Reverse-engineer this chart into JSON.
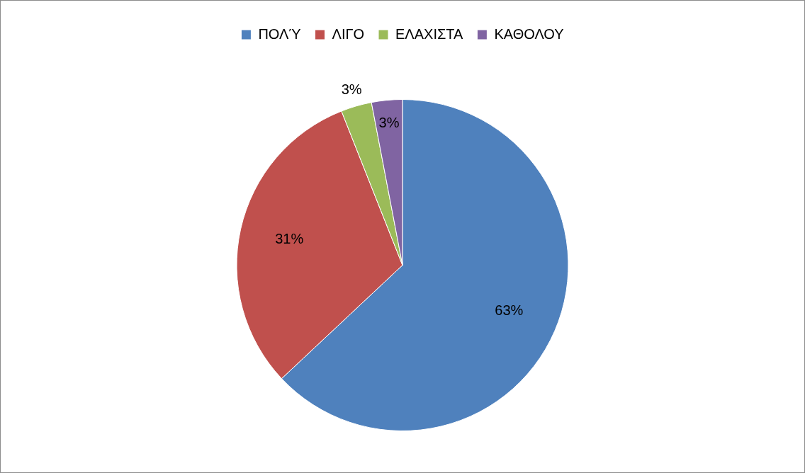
{
  "chart_data": {
    "type": "pie",
    "categories": [
      "ΠΟΛΎ",
      "ΛΙΓΟ",
      "ΕΛΑΧΙΣΤΑ",
      "ΚΑΘΟΛΟΥ"
    ],
    "values": [
      63,
      31,
      3,
      3
    ],
    "colors": [
      "#4f81bd",
      "#c0504d",
      "#9bbb59",
      "#8064a2"
    ],
    "value_labels": [
      "63%",
      "31%",
      "3%",
      "3%"
    ],
    "legend": "top"
  }
}
